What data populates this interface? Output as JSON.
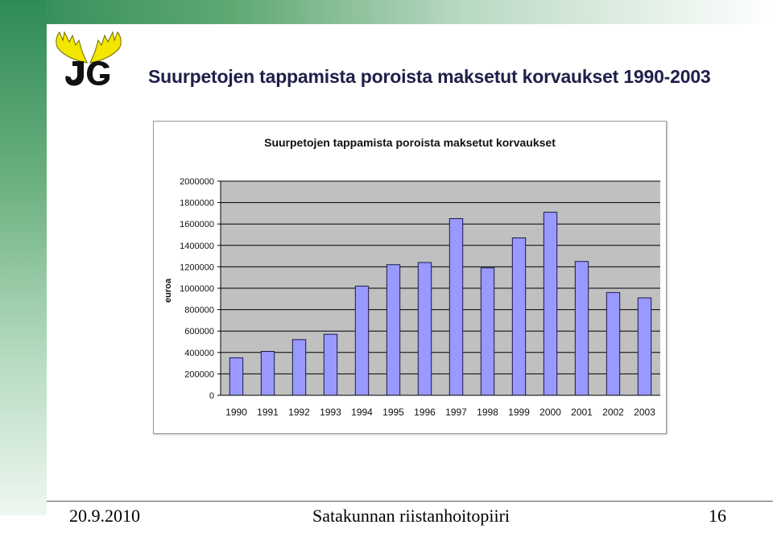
{
  "slide": {
    "title": "Suurpetojen tappamista poroista maksetut korvaukset 1990-2003",
    "footer_date": "20.9.2010",
    "footer_org": "Satakunnan riistanhoitopiiri",
    "page_number": "16",
    "logo_text": "JG",
    "colors": {
      "accent_green": "#2e8b57",
      "logo_yellow": "#f3e600",
      "logo_black": "#111111"
    }
  },
  "chart_data": {
    "type": "bar",
    "title": "Suurpetojen tappamista poroista maksetut korvaukset",
    "xlabel": "",
    "ylabel": "euroa",
    "categories": [
      "1990",
      "1991",
      "1992",
      "1993",
      "1994",
      "1995",
      "1996",
      "1997",
      "1998",
      "1999",
      "2000",
      "2001",
      "2002",
      "2003"
    ],
    "values": [
      350000,
      410000,
      520000,
      570000,
      1020000,
      1220000,
      1240000,
      1650000,
      1190000,
      1470000,
      1710000,
      1250000,
      960000,
      910000
    ],
    "ylim": [
      0,
      2000000
    ],
    "yticks": [
      0,
      200000,
      400000,
      600000,
      800000,
      1000000,
      1200000,
      1400000,
      1600000,
      1800000,
      2000000
    ],
    "ytick_labels": [
      "0",
      "200000",
      "400000",
      "600000",
      "800000",
      "1000000",
      "1200000",
      "1400000",
      "1600000",
      "1800000",
      "2000000"
    ],
    "grid": true,
    "legend": "none",
    "colors": {
      "bar": "#9999ff",
      "bar_edge": "#1a1a4a",
      "plot_bg": "#c0c0c0",
      "grid": "#000000"
    }
  }
}
